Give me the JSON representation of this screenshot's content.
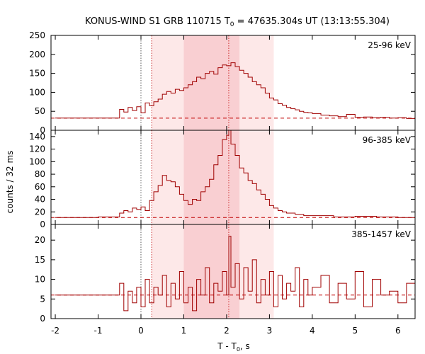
{
  "figure": {
    "title_main": "KONUS-WIND S1 GRB 110715 T",
    "title_sub": "0",
    "title_rest": " = 47635.304s UT (13:13:55.304)",
    "ylabel": "counts / 32 ms",
    "xlabel_main": "T - T",
    "xlabel_sub": "0",
    "xlabel_rest": ", s"
  },
  "colors": {
    "curve": "#a00000",
    "background_line": "#c00000",
    "shade_light": "#fde8e8",
    "shade_dark": "#f9cfd2",
    "frame": "#000000"
  },
  "chart_data": [
    {
      "type": "line",
      "label": "25-96 keV",
      "x": [
        -2,
        -1.5,
        -1,
        -0.55,
        -0.5,
        -0.4,
        -0.3,
        -0.2,
        -0.1,
        0,
        0.1,
        0.2,
        0.3,
        0.4,
        0.5,
        0.6,
        0.7,
        0.8,
        0.9,
        1,
        1.1,
        1.2,
        1.3,
        1.4,
        1.5,
        1.6,
        1.7,
        1.8,
        1.9,
        2,
        2.1,
        2.2,
        2.3,
        2.4,
        2.5,
        2.6,
        2.7,
        2.8,
        2.9,
        3,
        3.1,
        3.2,
        3.3,
        3.4,
        3.5,
        3.6,
        3.7,
        3.8,
        3.9,
        4,
        4.2,
        4.4,
        4.6,
        4.8,
        5,
        5.2,
        5.4,
        5.6,
        5.8,
        6,
        6.2,
        6.4
      ],
      "y": [
        32,
        32,
        32,
        32,
        55,
        48,
        60,
        52,
        62,
        46,
        72,
        65,
        75,
        82,
        95,
        102,
        98,
        108,
        105,
        112,
        120,
        128,
        140,
        136,
        150,
        155,
        148,
        165,
        172,
        170,
        178,
        168,
        158,
        150,
        140,
        128,
        120,
        112,
        98,
        85,
        80,
        70,
        66,
        60,
        57,
        54,
        50,
        47,
        46,
        44,
        40,
        38,
        36,
        42,
        34,
        35,
        33,
        34,
        32,
        33,
        31,
        32
      ],
      "background": 32,
      "ylim": [
        0,
        250
      ],
      "yticks": [
        0,
        50,
        100,
        150,
        200,
        250
      ]
    },
    {
      "type": "line",
      "label": "96-385 keV",
      "x": [
        -2,
        -1.5,
        -1,
        -0.5,
        -0.4,
        -0.3,
        -0.2,
        -0.1,
        0,
        0.1,
        0.2,
        0.3,
        0.4,
        0.5,
        0.6,
        0.7,
        0.8,
        0.9,
        1,
        1.1,
        1.2,
        1.3,
        1.4,
        1.5,
        1.6,
        1.7,
        1.8,
        1.9,
        2,
        2.05,
        2.1,
        2.2,
        2.3,
        2.4,
        2.5,
        2.6,
        2.7,
        2.8,
        2.9,
        3,
        3.1,
        3.2,
        3.3,
        3.4,
        3.6,
        3.8,
        4,
        4.5,
        5,
        5.5,
        6,
        6.4
      ],
      "y": [
        11,
        11,
        12,
        18,
        22,
        20,
        26,
        24,
        28,
        22,
        38,
        52,
        62,
        78,
        70,
        68,
        60,
        48,
        38,
        32,
        40,
        38,
        52,
        60,
        72,
        95,
        110,
        135,
        142,
        150,
        128,
        110,
        90,
        82,
        70,
        65,
        55,
        48,
        40,
        30,
        26,
        22,
        20,
        18,
        16,
        14,
        14,
        12,
        13,
        12,
        11,
        10
      ],
      "background": 11,
      "ylim": [
        0,
        150
      ],
      "yticks": [
        0,
        20,
        40,
        60,
        80,
        100,
        120,
        140
      ]
    },
    {
      "type": "line",
      "label": "385-1457 keV",
      "x": [
        -2,
        -1.5,
        -1,
        -0.55,
        -0.5,
        -0.4,
        -0.3,
        -0.2,
        -0.1,
        0,
        0.1,
        0.2,
        0.3,
        0.4,
        0.5,
        0.6,
        0.7,
        0.8,
        0.9,
        1,
        1.1,
        1.2,
        1.3,
        1.4,
        1.5,
        1.6,
        1.7,
        1.8,
        1.9,
        2,
        2.05,
        2.1,
        2.2,
        2.3,
        2.4,
        2.5,
        2.6,
        2.7,
        2.8,
        2.9,
        3,
        3.1,
        3.2,
        3.3,
        3.4,
        3.5,
        3.6,
        3.7,
        3.8,
        3.9,
        4,
        4.2,
        4.4,
        4.6,
        4.8,
        5,
        5.2,
        5.4,
        5.6,
        5.8,
        6,
        6.2,
        6.4
      ],
      "y": [
        6,
        6,
        6,
        6,
        9,
        2,
        7,
        4,
        8,
        3,
        10,
        4,
        8,
        6,
        11,
        3,
        9,
        5,
        12,
        4,
        8,
        2,
        10,
        6,
        13,
        4,
        9,
        7,
        12,
        6,
        21,
        8,
        14,
        5,
        13,
        7,
        15,
        4,
        10,
        6,
        12,
        3,
        11,
        5,
        9,
        7,
        13,
        3,
        10,
        6,
        8,
        11,
        4,
        9,
        5,
        12,
        3,
        10,
        6,
        7,
        4,
        9,
        5
      ],
      "background": 6,
      "ylim": [
        0,
        24
      ],
      "yticks": [
        0,
        5,
        10,
        15,
        20
      ]
    }
  ],
  "xaxis": {
    "xlim": [
      -2.1,
      6.4
    ],
    "ticks": [
      -2,
      -1,
      0,
      1,
      2,
      3,
      4,
      5,
      6
    ]
  },
  "shading": {
    "light": [
      0.25,
      3.1
    ],
    "dark": [
      1.0,
      2.3
    ]
  },
  "markers": {
    "black_dotted_x": 0,
    "red_dotted_x": [
      0.25,
      2.05
    ]
  }
}
